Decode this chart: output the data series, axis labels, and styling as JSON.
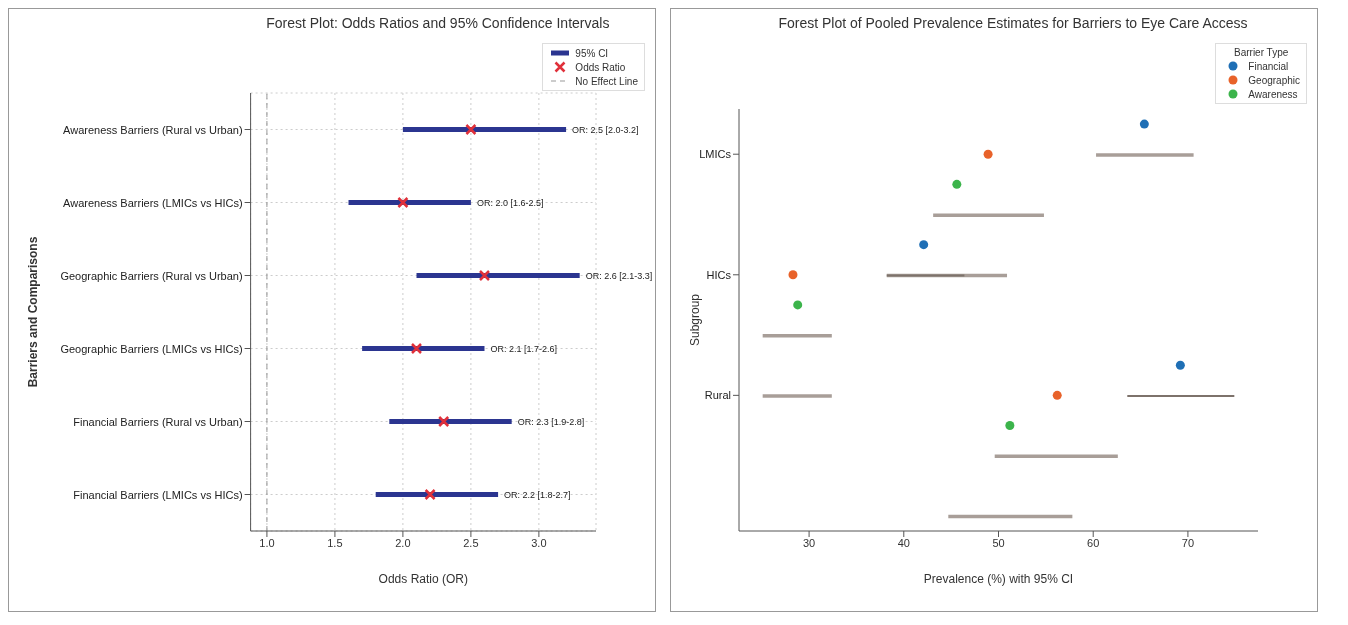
{
  "chart_data": [
    {
      "type": "bar",
      "orientation": "horizontal",
      "title": "Forest Plot: Odds Ratios and 95% Confidence Intervals",
      "xlabel": "Odds Ratio (OR)",
      "ylabel": "Barriers and Comparisons",
      "categories": [
        "Awareness Barriers (Rural vs Urban)",
        "Awareness Barriers (LMICs vs HICs)",
        "Geographic Barriers (Rural vs Urban)",
        "Geographic Barriers (LMICs vs HICs)",
        "Financial Barriers (Rural vs Urban)",
        "Financial Barriers (LMICs vs HICs)"
      ],
      "series": [
        {
          "name": "95% CI",
          "type": "bar",
          "color": "#2b3590",
          "base": [
            2.0,
            1.6,
            2.1,
            1.7,
            1.9,
            1.8
          ],
          "values": [
            1.2,
            0.9,
            1.2,
            0.9,
            0.9,
            0.9
          ],
          "value_labels": [
            "OR: 2.5 [2.0-3.2]",
            "OR: 2.0 [1.6-2.5]",
            "OR: 2.6 [2.1-3.3]",
            "OR: 2.1 [1.7-2.6]",
            "OR: 2.3 [1.9-2.8]",
            "OR: 2.2 [1.8-2.7]"
          ]
        },
        {
          "name": "Odds Ratio",
          "type": "scatter",
          "marker": "cross",
          "color": "#e0303a",
          "values": [
            2.5,
            2.0,
            2.6,
            2.1,
            2.3,
            2.2
          ]
        }
      ],
      "xlim": [
        0.88,
        3.42
      ],
      "xticks": [
        {
          "value": 1,
          "label": "1.0"
        },
        1.5,
        {
          "value": 2,
          "label": "2.0"
        },
        2.5,
        {
          "value": 3,
          "label": "3.0"
        }
      ],
      "ref_lines": [
        {
          "axis": "x",
          "value": 1,
          "label": "No Effect Line",
          "color": "#999999",
          "line_style": "dashed"
        }
      ],
      "grid": true,
      "legend": "top right"
    },
    {
      "type": "scatter",
      "orientation": "horizontal",
      "title": "Forest Plot of Pooled Prevalence Estimates for Barriers to Eye Care Access",
      "xlabel": "Prevalence (%) with 95% CI",
      "ylabel": "Subgroup",
      "legend_title": "Barrier Type",
      "legend": "top right",
      "marker": "circle",
      "categories": [
        null,
        "LMICs",
        null,
        null,
        null,
        "HICs",
        null,
        null,
        null,
        "Rural",
        null,
        null,
        null,
        null
      ],
      "xlim": [
        22.6,
        77.4
      ],
      "xticks": [
        30,
        40,
        50,
        60,
        70
      ],
      "series": [
        {
          "name": "Financial",
          "color": "#1f6fb5",
          "values": [
            65.4,
            null,
            null,
            null,
            42.1,
            null,
            null,
            null,
            69.2,
            null,
            null,
            null,
            null,
            null
          ]
        },
        {
          "name": "Geographic",
          "color": "#e8622a",
          "values": [
            null,
            48.9,
            null,
            null,
            null,
            28.3,
            null,
            null,
            null,
            56.2,
            null,
            null,
            null,
            null
          ]
        },
        {
          "name": "Awareness",
          "color": "#3cb44b",
          "values": [
            null,
            null,
            45.6,
            null,
            null,
            null,
            28.8,
            null,
            null,
            null,
            51.2,
            null,
            null,
            null
          ]
        },
        {
          "type": "bar",
          "color": "#a89e98",
          "base": [
            null,
            60.3,
            null,
            43.1,
            null,
            38.2,
            null,
            25.1,
            null,
            25.1,
            null,
            49.6,
            null,
            44.7
          ],
          "values": [
            null,
            10.3,
            null,
            11.7,
            null,
            12.7,
            null,
            7.3,
            null,
            7.3,
            null,
            13.0,
            null,
            13.1
          ]
        },
        {
          "type": "bar",
          "color": "#7d726b",
          "base": [
            null,
            null,
            null,
            null,
            null,
            38.2,
            null,
            null,
            null,
            63.6,
            null,
            null,
            null,
            null
          ],
          "values": [
            null,
            null,
            null,
            null,
            null,
            8.2,
            null,
            null,
            null,
            11.3,
            null,
            null,
            null,
            null
          ]
        }
      ]
    }
  ]
}
